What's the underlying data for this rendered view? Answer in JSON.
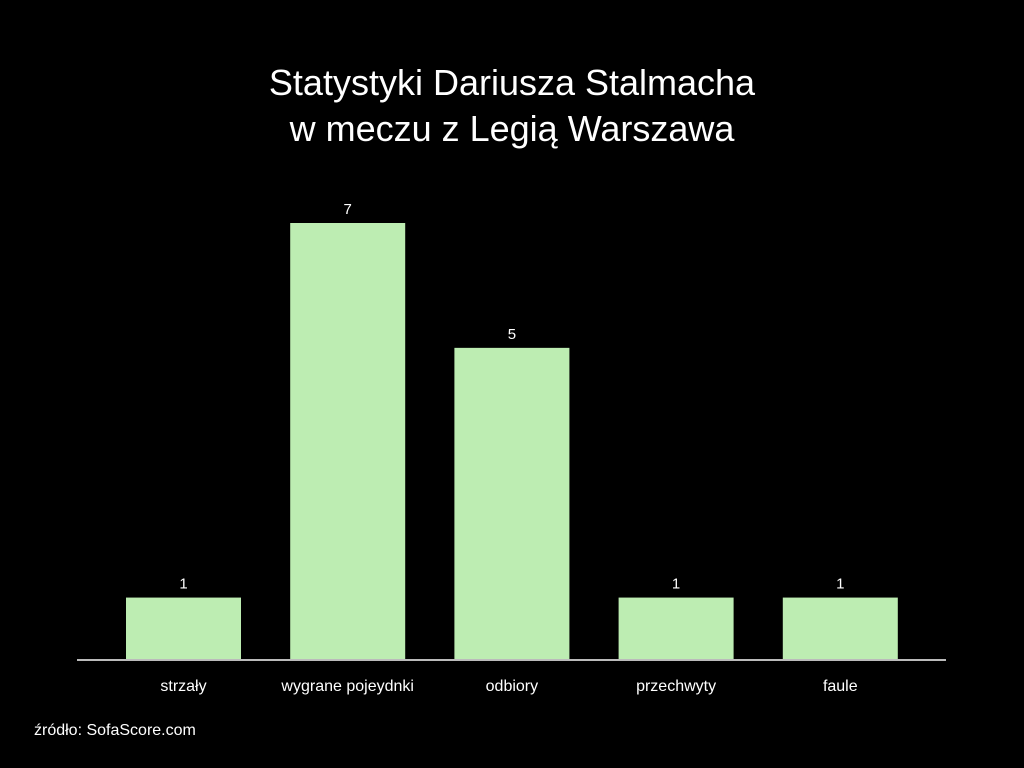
{
  "chart_data": {
    "type": "bar",
    "title_lines": [
      "Statystyki Dariusza Stalmacha",
      "w meczu z Legią Warszawa"
    ],
    "categories": [
      "strzały",
      "wygrane pojeydnki",
      "odbiory",
      "przechwyty",
      "faule"
    ],
    "values": [
      1,
      7,
      5,
      1,
      1
    ],
    "ylim": [
      0,
      7
    ],
    "grid": false,
    "bar_color": "#bdedb2",
    "axis_color": "#bbbbbb",
    "background": "#000000"
  },
  "source": "źródło: SofaScore.com"
}
